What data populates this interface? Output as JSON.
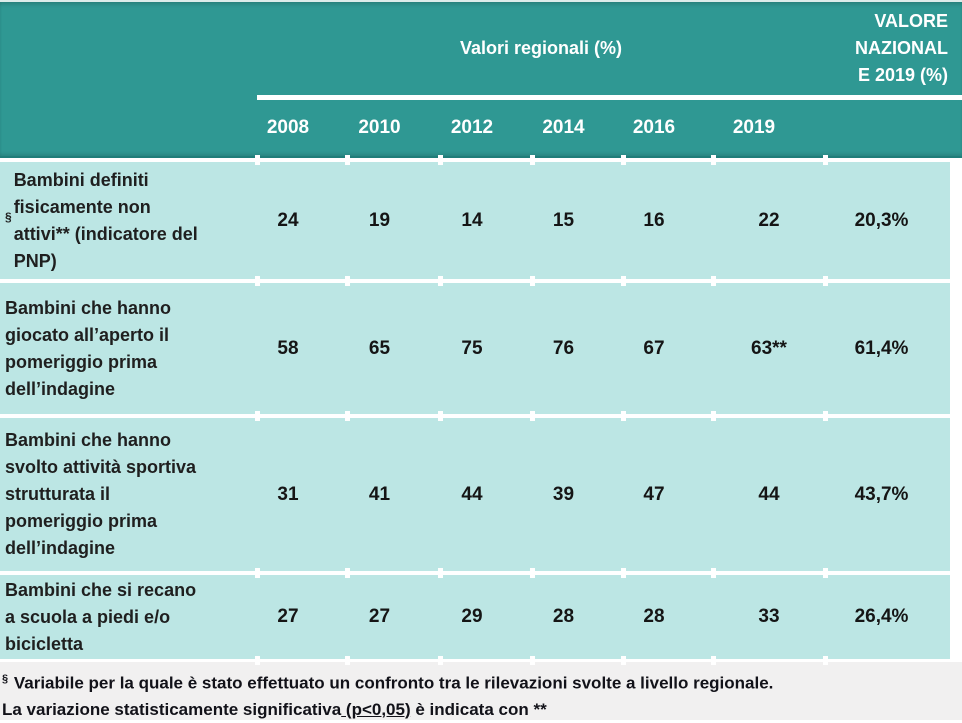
{
  "table": {
    "header": {
      "regional_title": "Valori regionali (%)",
      "national_title": "VALORE\nNAZIONAL\nE 2019 (%)",
      "years": [
        "2008",
        "2010",
        "2012",
        "2014",
        "2016",
        "2019"
      ]
    },
    "rows": [
      {
        "marker": "§",
        "label": "Bambini definiti\nfisicamente non\nattivi** (indicatore del\nPNP)",
        "values": [
          "24",
          "19",
          "14",
          "15",
          "16",
          "22"
        ],
        "national": "20,3%"
      },
      {
        "label": "Bambini che hanno\ngiocato all’aperto il\npomeriggio prima\ndell’indagine",
        "values": [
          "58",
          "65",
          "75",
          "76",
          "67",
          "63**"
        ],
        "national": "61,4%"
      },
      {
        "label": "Bambini che hanno\nsvolto attività sportiva\nstrutturata il\npomeriggio prima\ndell’indagine",
        "values": [
          "31",
          "41",
          "44",
          "39",
          "47",
          "44"
        ],
        "national": "43,7%"
      },
      {
        "label": "Bambini che si recano\na scuola a piedi e/o\nbicicletta",
        "values": [
          "27",
          "27",
          "29",
          "28",
          "28",
          "33"
        ],
        "national": "26,4%"
      }
    ],
    "footnotes": {
      "line1_marker": "§",
      "line1": "Variabile per la quale è stato effettuato un confronto tra le rilevazioni svolte a livello regionale.",
      "line2_prefix": "La variazione statisticamente significativa",
      "line2_underlined": " (p<0,05)",
      "line2_suffix": " è indicata con **"
    }
  },
  "colors": {
    "header_teal": "#2F9893",
    "row_teal": "#BCE6E4",
    "footer_bg": "#F1F0F0"
  }
}
